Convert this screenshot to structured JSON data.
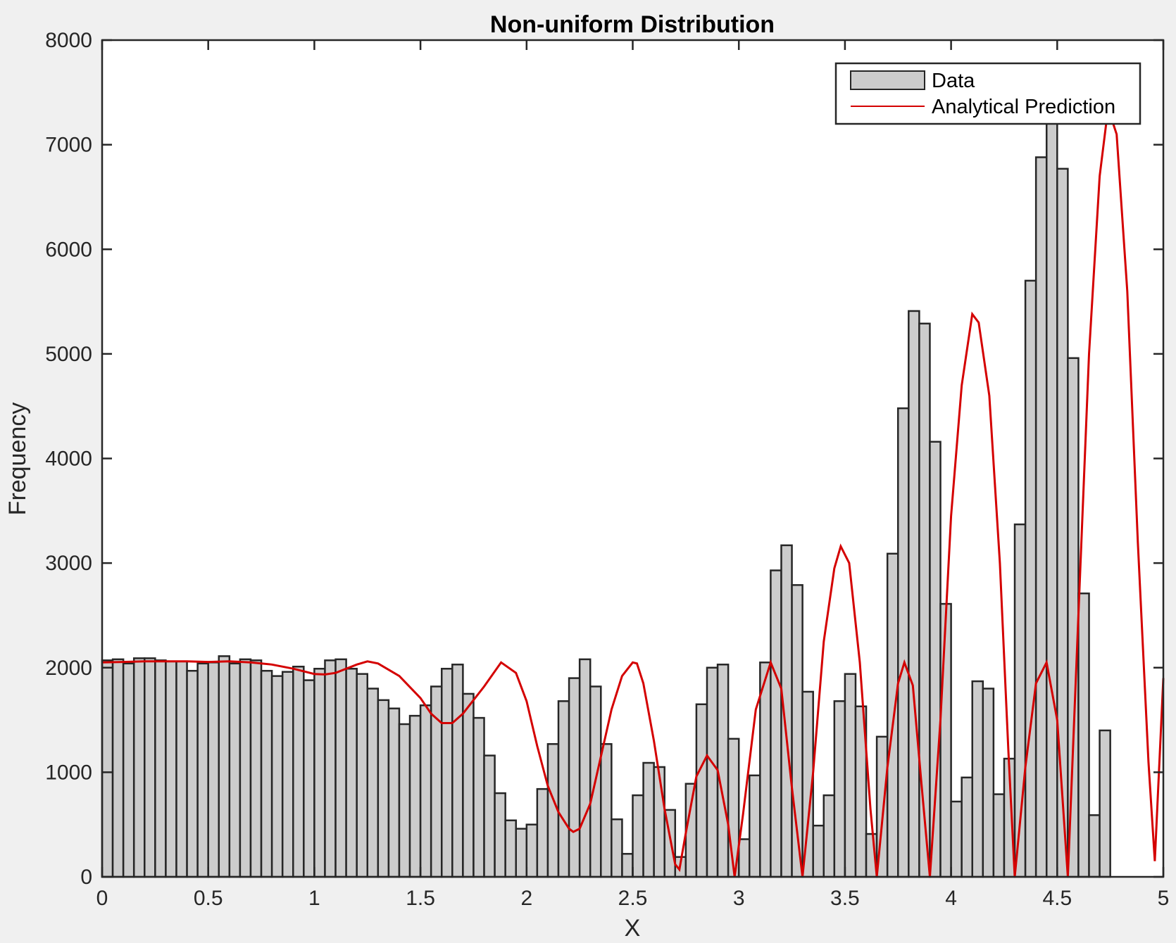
{
  "chart_data": {
    "type": "bar",
    "title": "Non-uniform Distribution",
    "xlabel": "X",
    "ylabel": "Frequency",
    "xlim": [
      0,
      5
    ],
    "ylim": [
      0,
      8000
    ],
    "xticks": [
      "0",
      "0.5",
      "1",
      "1.5",
      "2",
      "2.5",
      "3",
      "3.5",
      "4",
      "4.5",
      "5"
    ],
    "yticks": [
      "0",
      "1000",
      "2000",
      "3000",
      "4000",
      "5000",
      "6000",
      "7000",
      "8000"
    ],
    "grid": false,
    "legend_position": "top-right",
    "bin_width": 0.05,
    "bin_start": 0,
    "series": [
      {
        "name": "Data",
        "style": "bar",
        "color": "#cccccc",
        "edge_color": "#262626",
        "values": [
          2070,
          2080,
          2040,
          2090,
          2090,
          2070,
          2060,
          2060,
          1970,
          2040,
          2050,
          2110,
          2040,
          2080,
          2070,
          1970,
          1920,
          1960,
          2010,
          1880,
          1990,
          2070,
          2080,
          1990,
          1940,
          1800,
          1690,
          1610,
          1460,
          1540,
          1640,
          1820,
          1990,
          2030,
          1750,
          1520,
          1160,
          800,
          540,
          460,
          500,
          840,
          1270,
          1680,
          1900,
          2080,
          1820,
          1270,
          550,
          220,
          780,
          1090,
          1050,
          640,
          190,
          890,
          1650,
          2000,
          2030,
          1320,
          360,
          970,
          2050,
          2930,
          3170,
          2790,
          1770,
          490,
          780,
          1680,
          1940,
          1630,
          410,
          1340,
          3090,
          4480,
          5410,
          5290,
          4160,
          2610,
          720,
          950,
          1870,
          1800,
          790,
          1130,
          3370,
          5700,
          6880,
          7350,
          6770,
          4960,
          2710,
          590,
          1400
        ]
      },
      {
        "name": "Analytical Prediction",
        "style": "line",
        "color": "#d40000",
        "x": [
          0,
          0.1,
          0.2,
          0.3,
          0.4,
          0.5,
          0.6,
          0.7,
          0.8,
          0.9,
          1.0,
          1.05,
          1.1,
          1.2,
          1.25,
          1.3,
          1.4,
          1.5,
          1.55,
          1.6,
          1.65,
          1.7,
          1.8,
          1.88,
          1.95,
          2.0,
          2.05,
          2.1,
          2.15,
          2.2,
          2.22,
          2.25,
          2.3,
          2.35,
          2.4,
          2.45,
          2.5,
          2.52,
          2.55,
          2.6,
          2.65,
          2.7,
          2.72,
          2.75,
          2.8,
          2.85,
          2.9,
          2.95,
          2.98,
          3.02,
          3.08,
          3.15,
          3.2,
          3.25,
          3.3,
          3.35,
          3.4,
          3.45,
          3.48,
          3.52,
          3.57,
          3.62,
          3.65,
          3.7,
          3.75,
          3.78,
          3.82,
          3.86,
          3.9,
          3.95,
          4.0,
          4.05,
          4.1,
          4.13,
          4.18,
          4.23,
          4.27,
          4.3,
          4.35,
          4.4,
          4.45,
          4.5,
          4.55,
          4.6,
          4.65,
          4.7,
          4.74,
          4.78,
          4.83,
          4.88,
          4.93,
          4.96,
          5.0
        ],
        "y": [
          2050,
          2055,
          2060,
          2060,
          2060,
          2055,
          2060,
          2050,
          2030,
          1990,
          1940,
          1935,
          1950,
          2030,
          2060,
          2040,
          1920,
          1710,
          1560,
          1470,
          1470,
          1560,
          1820,
          2050,
          1950,
          1680,
          1250,
          870,
          620,
          460,
          430,
          460,
          700,
          1150,
          1600,
          1920,
          2050,
          2040,
          1850,
          1300,
          650,
          120,
          70,
          420,
          960,
          1160,
          1020,
          500,
          0,
          600,
          1600,
          2050,
          1800,
          850,
          0,
          1000,
          2250,
          2950,
          3160,
          3000,
          2050,
          650,
          0,
          1050,
          1850,
          2050,
          1830,
          900,
          0,
          1500,
          3450,
          4700,
          5380,
          5300,
          4600,
          3000,
          1200,
          0,
          1050,
          1850,
          2050,
          1500,
          0,
          2500,
          5000,
          6700,
          7350,
          7100,
          5600,
          3200,
          1100,
          150,
          1900
        ]
      }
    ]
  }
}
